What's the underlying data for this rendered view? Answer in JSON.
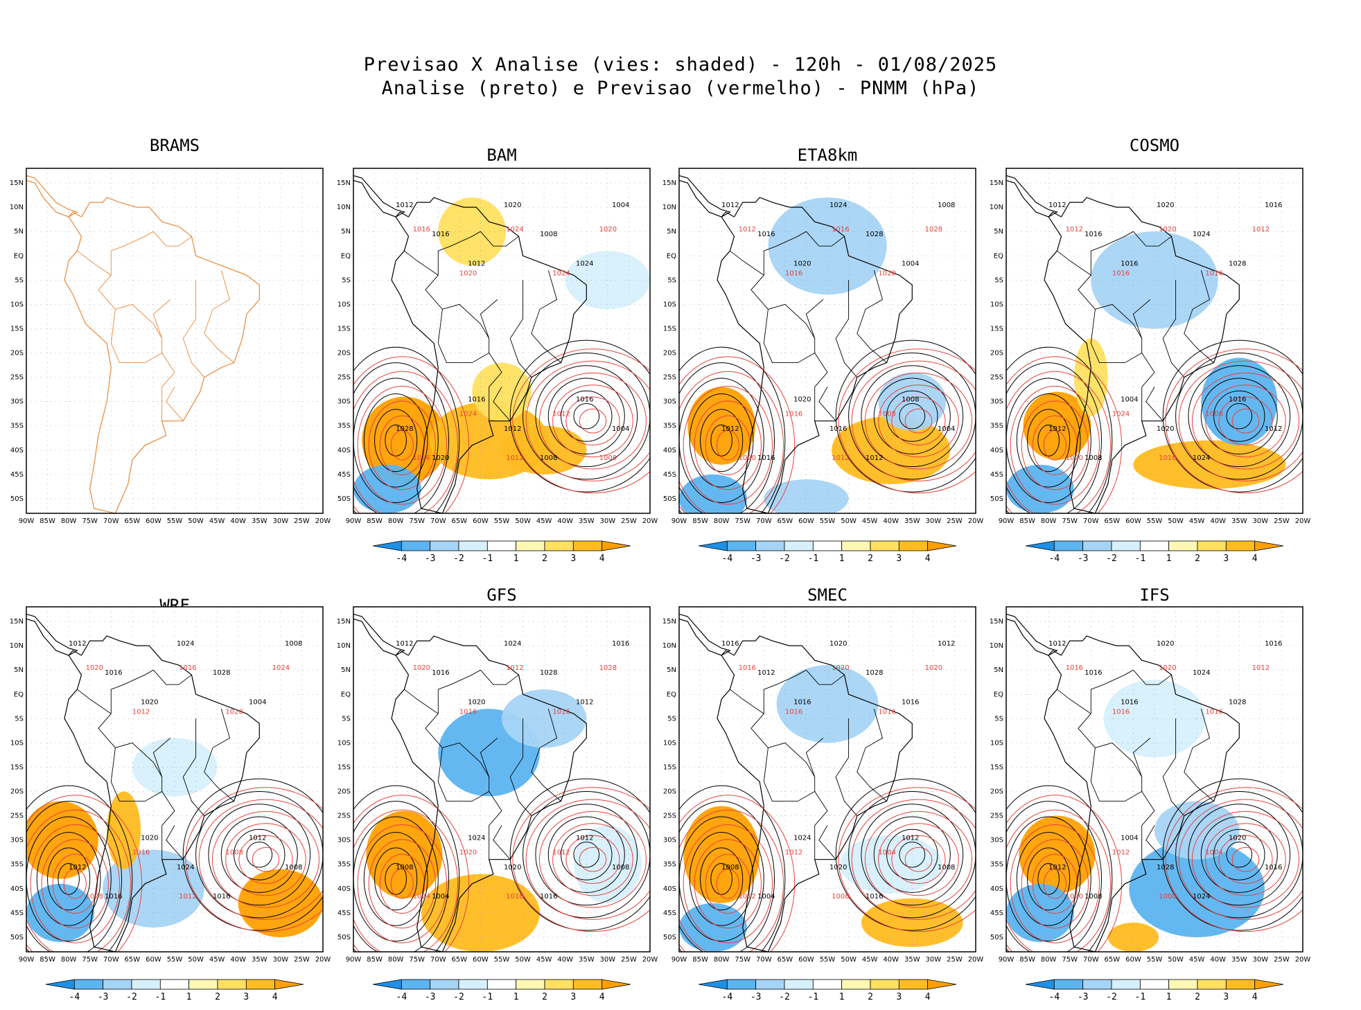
{
  "header": {
    "line1": "Previsao X Analise (vies: shaded) - 120h - 01/08/2025",
    "line2": "Analise (preto) e Previsao (vermelho) - PNMM (hPa)"
  },
  "lat_labels": [
    "15N",
    "10N",
    "5N",
    "EQ",
    "5S",
    "10S",
    "15S",
    "20S",
    "25S",
    "30S",
    "35S",
    "40S",
    "45S",
    "50S"
  ],
  "lon_labels": [
    "90W",
    "85W",
    "80W",
    "75W",
    "70W",
    "65W",
    "60W",
    "55W",
    "50W",
    "45W",
    "40W",
    "35W",
    "30W",
    "25W",
    "20W"
  ],
  "colorbar": {
    "labels": [
      "-4",
      "-3",
      "-2",
      "-1",
      "1",
      "2",
      "3",
      "4"
    ],
    "colors": [
      "#1e90e6",
      "#5cb4f0",
      "#a6d4f6",
      "#d6f0fc",
      "#ffffff",
      "#fff8b4",
      "#ffe060",
      "#ffbc20",
      "#ffa000"
    ]
  },
  "colors": {
    "analysis": "#000000",
    "forecast": "#e8403a",
    "coast_brams": "#e8883a"
  },
  "panels": [
    {
      "title": "BRAMS",
      "colorbar": false,
      "black_labels": [],
      "red_labels": []
    },
    {
      "title": "BAM",
      "colorbar": true,
      "black_labels": [
        "1012",
        "1016",
        "1012",
        "1020",
        "1008",
        "1024",
        "1004",
        "1028",
        "1020",
        "1016",
        "1012",
        "1008",
        "1016",
        "1004"
      ],
      "red_labels": [
        "1016",
        "1020",
        "1024",
        "1024",
        "1020",
        "1016",
        "1024",
        "1012",
        "1012",
        "1008"
      ]
    },
    {
      "title": "ETA8km",
      "colorbar": true,
      "black_labels": [
        "1012",
        "1016",
        "1020",
        "1024",
        "1028",
        "1004",
        "1008",
        "1012",
        "1016",
        "1020",
        "1016",
        "1012",
        "1008",
        "1004"
      ],
      "red_labels": [
        "1012",
        "1016",
        "1016",
        "1020",
        "1028",
        "1020",
        "1016",
        "1012",
        "1008"
      ]
    },
    {
      "title": "COSMO",
      "colorbar": true,
      "black_labels": [
        "1012",
        "1016",
        "1016",
        "1020",
        "1024",
        "1028",
        "1016",
        "1012",
        "1008",
        "1004",
        "1020",
        "1024",
        "1016",
        "1012"
      ],
      "red_labels": [
        "1012",
        "1016",
        "1020",
        "1016",
        "1012",
        "1020",
        "1024",
        "1016",
        "1008"
      ]
    },
    {
      "title": "WRF",
      "colorbar": true,
      "black_labels": [
        "1012",
        "1016",
        "1020",
        "1024",
        "1028",
        "1004",
        "1008",
        "1012",
        "1016",
        "1020",
        "1024",
        "1016",
        "1012",
        "1008"
      ],
      "red_labels": [
        "1020",
        "1012",
        "1016",
        "1020",
        "1024",
        "1028",
        "1016",
        "1012",
        "1008"
      ]
    },
    {
      "title": "GFS",
      "colorbar": true,
      "black_labels": [
        "1012",
        "1016",
        "1020",
        "1024",
        "1028",
        "1012",
        "1016",
        "1008",
        "1004",
        "1024",
        "1020",
        "1016",
        "1012",
        "1008"
      ],
      "red_labels": [
        "1020",
        "1016",
        "1012",
        "1016",
        "1028",
        "1024",
        "1020",
        "1016",
        "1012"
      ]
    },
    {
      "title": "SMEC",
      "colorbar": true,
      "black_labels": [
        "1016",
        "1012",
        "1016",
        "1020",
        "1028",
        "1016",
        "1012",
        "1008",
        "1004",
        "1024",
        "1020",
        "1016",
        "1012",
        "1008"
      ],
      "red_labels": [
        "1016",
        "1016",
        "1020",
        "1016",
        "1020",
        "1012",
        "1012",
        "1008",
        "1004"
      ]
    },
    {
      "title": "IFS",
      "colorbar": true,
      "black_labels": [
        "1012",
        "1016",
        "1016",
        "1020",
        "1024",
        "1028",
        "1016",
        "1012",
        "1008",
        "1004",
        "1028",
        "1024",
        "1020",
        "1016"
      ],
      "red_labels": [
        "1016",
        "1016",
        "1020",
        "1016",
        "1012",
        "1020",
        "1012",
        "1008",
        "1004"
      ]
    }
  ]
}
